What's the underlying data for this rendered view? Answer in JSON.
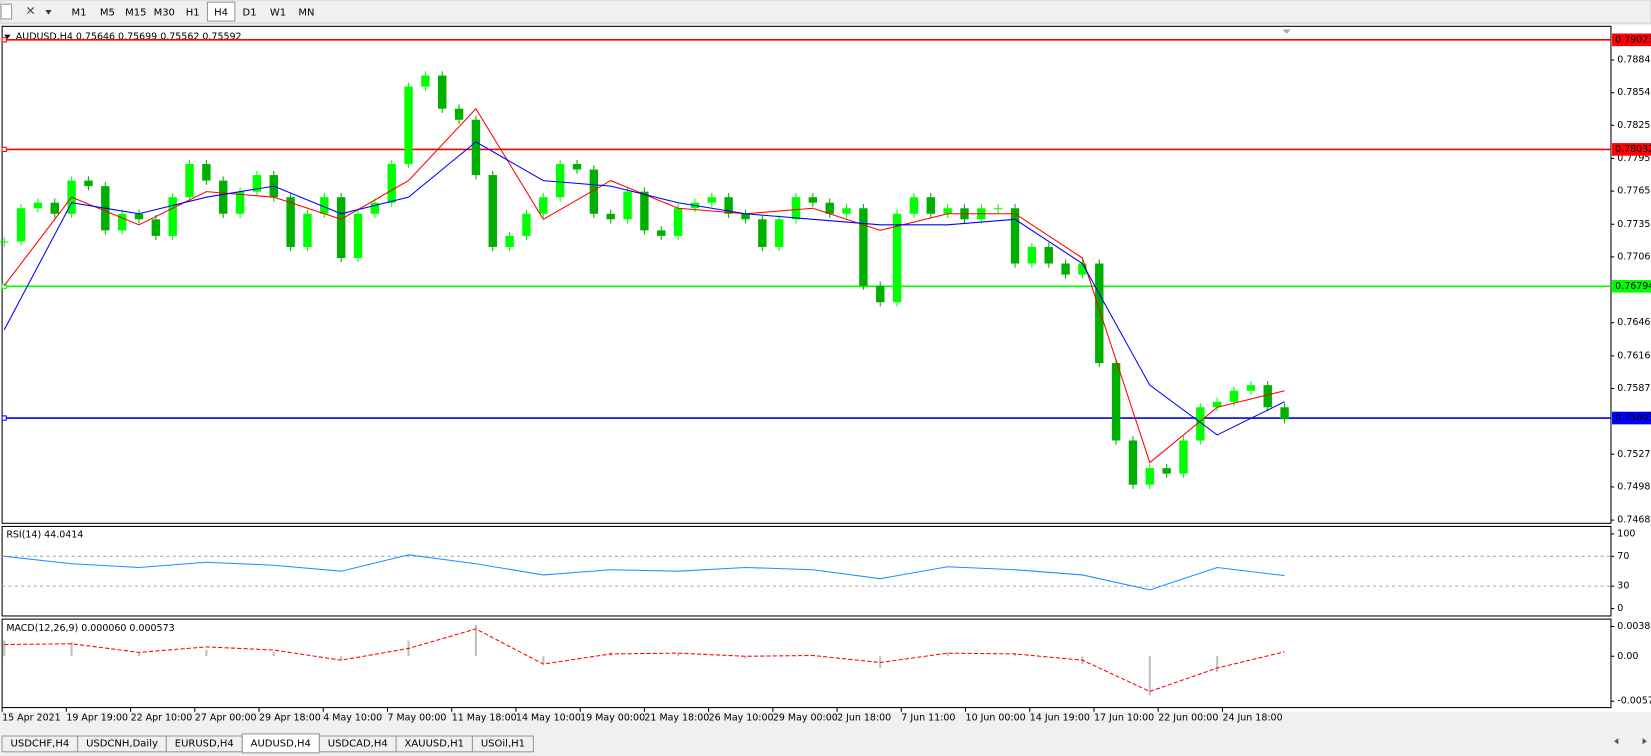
{
  "toolbar": {
    "timeframes": [
      "M1",
      "M5",
      "M15",
      "M30",
      "H1",
      "H4",
      "D1",
      "W1",
      "MN"
    ]
  },
  "tabs": [
    "USDCHF,H4",
    "USDCNH,Daily",
    "EURUSD,H4",
    "AUDUSD,H4",
    "USDCAD,H4",
    "XAUUSD,H1",
    "USOil,H1"
  ],
  "chart_data": [
    {
      "type": "candlestick",
      "title": "AUDUSD,H4  0.75646 0.75699 0.75562 0.75592",
      "up_color": "#00ff00",
      "down_color": "#00b000",
      "closes": [
        0.772,
        0.775,
        0.7755,
        0.7745,
        0.7775,
        0.777,
        0.773,
        0.7745,
        0.774,
        0.7725,
        0.776,
        0.779,
        0.7775,
        0.7745,
        0.7765,
        0.778,
        0.776,
        0.7715,
        0.7745,
        0.776,
        0.7705,
        0.7745,
        0.7755,
        0.779,
        0.786,
        0.787,
        0.784,
        0.783,
        0.778,
        0.7715,
        0.7725,
        0.7745,
        0.776,
        0.779,
        0.7785,
        0.7745,
        0.774,
        0.7765,
        0.773,
        0.7725,
        0.775,
        0.7755,
        0.776,
        0.7745,
        0.774,
        0.7715,
        0.774,
        0.776,
        0.7755,
        0.7745,
        0.775,
        0.768,
        0.7665,
        0.7745,
        0.776,
        0.7745,
        0.775,
        0.774,
        0.775,
        0.775,
        0.77,
        0.7715,
        0.77,
        0.769,
        0.77,
        0.761,
        0.754,
        0.75,
        0.7515,
        0.751,
        0.754,
        0.757,
        0.7575,
        0.7585,
        0.759,
        0.757,
        0.75592
      ],
      "moving_averages": [
        {
          "color": "#ff0000",
          "values": [
            0.768,
            0.776,
            0.7735,
            0.7765,
            0.776,
            0.774,
            0.7775,
            0.784,
            0.774,
            0.7775,
            0.775,
            0.7745,
            0.775,
            0.773,
            0.7745,
            0.7745,
            0.7705,
            0.752,
            0.757,
            0.7585
          ]
        },
        {
          "color": "#0000ff",
          "values": [
            0.764,
            0.7755,
            0.7745,
            0.776,
            0.777,
            0.7745,
            0.776,
            0.781,
            0.7775,
            0.777,
            0.7755,
            0.7745,
            0.774,
            0.7735,
            0.7735,
            0.774,
            0.77,
            0.759,
            0.7545,
            0.7575
          ]
        }
      ],
      "levels": [
        {
          "value": 0.79023,
          "color": "#ff0000"
        },
        {
          "value": 0.78032,
          "color": "#ff0000"
        },
        {
          "value": 0.76794,
          "color": "#00ff00"
        },
        {
          "value": 0.75603,
          "color": "#0000ff"
        }
      ],
      "ylim": [
        0.74651,
        0.79145
      ],
      "yticks": [
        {
          "value": 0.7884,
          "label": "0.78840"
        },
        0.78545,
        {
          "value": 0.7825,
          "label": "0.78250"
        },
        {
          "value": 0.7795,
          "label": "0.77950"
        },
        0.77655,
        0.77355,
        {
          "value": 0.7706,
          "label": "0.77060"
        },
        0.76465,
        0.76165,
        {
          "value": 0.7587,
          "label": "0.75870"
        },
        0.75275,
        {
          "value": 0.7498,
          "label": "0.74980"
        },
        {
          "value": 0.7468,
          "label": "0.74680"
        }
      ],
      "x_axis_labels": [
        "15 Apr 2021",
        "19 Apr 19:00",
        "22 Apr 10:00",
        "27 Apr 00:00",
        "29 Apr 18:00",
        "4 May 10:00",
        "7 May 00:00",
        "11 May 18:00",
        "14 May 10:00",
        "19 May 00:00",
        "21 May 18:00",
        "26 May 10:00",
        "29 May 00:00",
        "2 Jun 18:00",
        "7 Jun 11:00",
        "10 Jun 00:00",
        "14 Jun 19:00",
        "17 Jun 10:00",
        "22 Jun 00:00",
        "24 Jun 18:00"
      ]
    },
    {
      "type": "line",
      "title": "RSI(14) 44.0414",
      "color": "#1e90ff",
      "values": [
        70,
        60,
        55,
        62,
        58,
        50,
        72,
        60,
        45,
        52,
        50,
        55,
        52,
        40,
        56,
        52,
        45,
        25,
        55,
        44.0414
      ],
      "ylim": [
        -10,
        110
      ],
      "yticks": [
        100,
        70,
        30,
        0
      ],
      "levels": [
        70,
        30
      ]
    },
    {
      "type": "macd",
      "title": "MACD(12,26,9) 0.000060 0.000573",
      "color": "#c0c0c0",
      "signal_color": "#ff0000",
      "histogram": [
        0.002,
        0.0018,
        0.0005,
        0.0008,
        0.0006,
        -0.0005,
        0.002,
        0.004,
        -0.001,
        0.0005,
        0.0003,
        -0.0003,
        0.0001,
        -0.0015,
        0.0005,
        0.0004,
        -0.001,
        -0.005,
        -0.002,
        6e-05
      ],
      "signal": [
        0.0015,
        0.0016,
        0.0005,
        0.0012,
        0.0008,
        -0.0005,
        0.001,
        0.0035,
        -0.001,
        0.0003,
        0.0004,
        0.0,
        0.0001,
        -0.0008,
        0.0004,
        0.0003,
        -0.0005,
        -0.0045,
        -0.0015,
        0.000573
      ],
      "ylim": [
        -0.00656,
        0.00475
      ],
      "yticks": [
        0.003808,
        {
          "value": 0,
          "label": "0.00"
        },
        -0.00575
      ]
    }
  ]
}
